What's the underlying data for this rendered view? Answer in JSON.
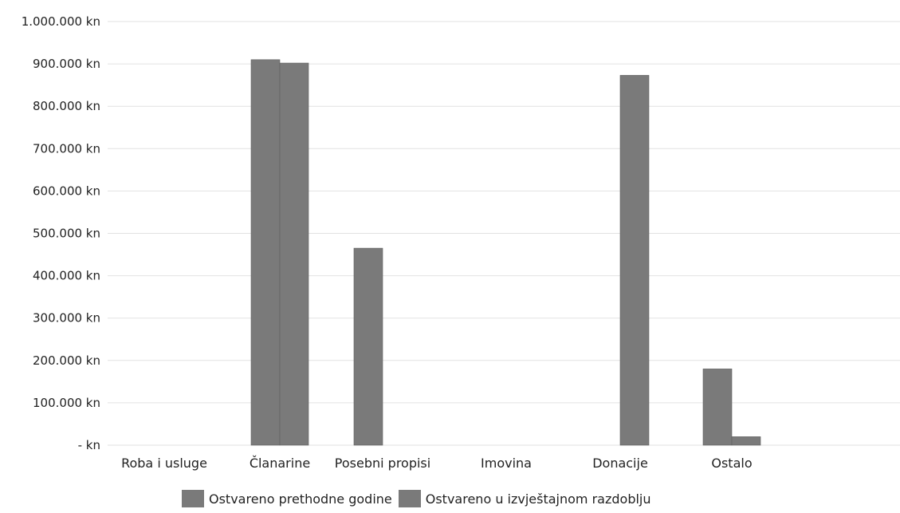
{
  "chart_data": {
    "type": "bar",
    "categories": [
      "Roba i usluge",
      "Članarine",
      "Posebni propisi",
      "Imovina",
      "Donacije",
      "Ostalo"
    ],
    "series": [
      {
        "name": "Ostvareno prethodne godine",
        "values": [
          0,
          910000,
          465000,
          0,
          0,
          180000
        ],
        "color": "#7a7a7a"
      },
      {
        "name": "Ostvareno u izvještajnom razdoblju",
        "values": [
          0,
          902000,
          0,
          0,
          873000,
          20000
        ],
        "color": "#7a7a7a"
      }
    ],
    "y_ticks": [
      "- kn",
      "100.000 kn",
      "200.000 kn",
      "300.000 kn",
      "400.000 kn",
      "500.000 kn",
      "600.000 kn",
      "700.000 kn",
      "800.000 kn",
      "900.000 kn",
      "1.000.000 kn"
    ],
    "ylim": [
      0,
      1000000
    ],
    "grid": true,
    "legend_position": "bottom"
  }
}
